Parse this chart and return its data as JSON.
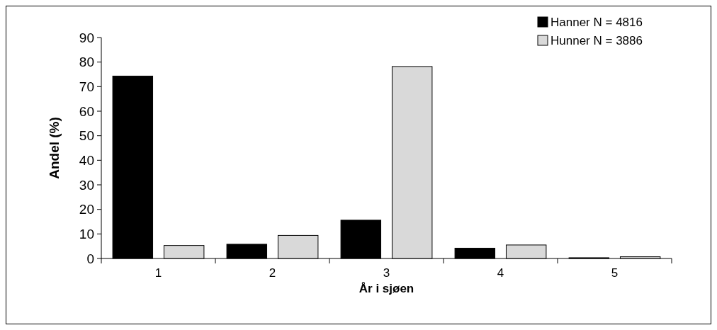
{
  "chart_data": {
    "type": "bar",
    "xlabel": "År i sjøen",
    "ylabel": "Andel (%)",
    "categories": [
      "1",
      "2",
      "3",
      "4",
      "5"
    ],
    "series": [
      {
        "name": "Hanner  N = 4816",
        "color": "#000000",
        "values": [
          74.3,
          5.8,
          15.6,
          4.2,
          0.3
        ]
      },
      {
        "name": "Hunner  N = 3886",
        "color": "#d9d9d9",
        "values": [
          5.3,
          9.4,
          78.2,
          5.5,
          0.7
        ]
      }
    ],
    "ylim": [
      0,
      90
    ],
    "yticks": [
      0,
      10,
      20,
      30,
      40,
      50,
      60,
      70,
      80,
      90
    ],
    "grid": false,
    "legend": "top right"
  }
}
